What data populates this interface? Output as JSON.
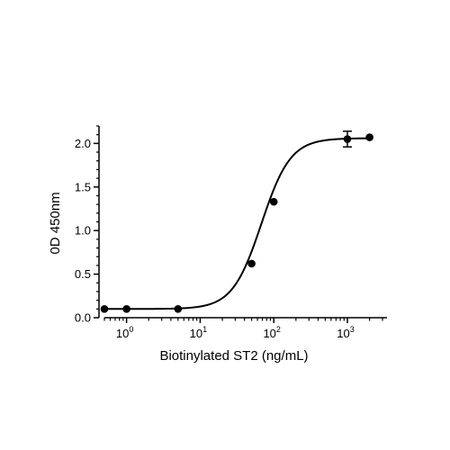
{
  "chart_data": {
    "type": "scatter",
    "xlabel": "Biotinylated ST2 (ng/mL)",
    "ylabel": "0D 450nm",
    "x_scale": "log",
    "xlim": [
      0.4,
      3000
    ],
    "ylim": [
      0,
      2.2
    ],
    "x_ticks": [
      {
        "value": 1,
        "base": "10",
        "exp": "0"
      },
      {
        "value": 10,
        "base": "10",
        "exp": "1"
      },
      {
        "value": 100,
        "base": "10",
        "exp": "2"
      },
      {
        "value": 1000,
        "base": "10",
        "exp": "3"
      }
    ],
    "y_ticks": [
      {
        "value": 0,
        "label": "0.0"
      },
      {
        "value": 0.5,
        "label": "0.5"
      },
      {
        "value": 1.0,
        "label": "1.0"
      },
      {
        "value": 1.5,
        "label": "1.5"
      },
      {
        "value": 2.0,
        "label": "2.0"
      }
    ],
    "points": [
      {
        "x": 0.5,
        "y": 0.1
      },
      {
        "x": 1,
        "y": 0.1
      },
      {
        "x": 5,
        "y": 0.1
      },
      {
        "x": 50,
        "y": 0.62
      },
      {
        "x": 100,
        "y": 1.33
      },
      {
        "x": 1000,
        "y": 2.05,
        "err": 0.09
      },
      {
        "x": 2000,
        "y": 2.07
      }
    ],
    "fit": {
      "model": "4PL",
      "bottom": 0.1,
      "top": 2.06,
      "ec50": 68,
      "hill": 2.2
    },
    "grid": false,
    "legend": "none",
    "color": "#000000"
  }
}
